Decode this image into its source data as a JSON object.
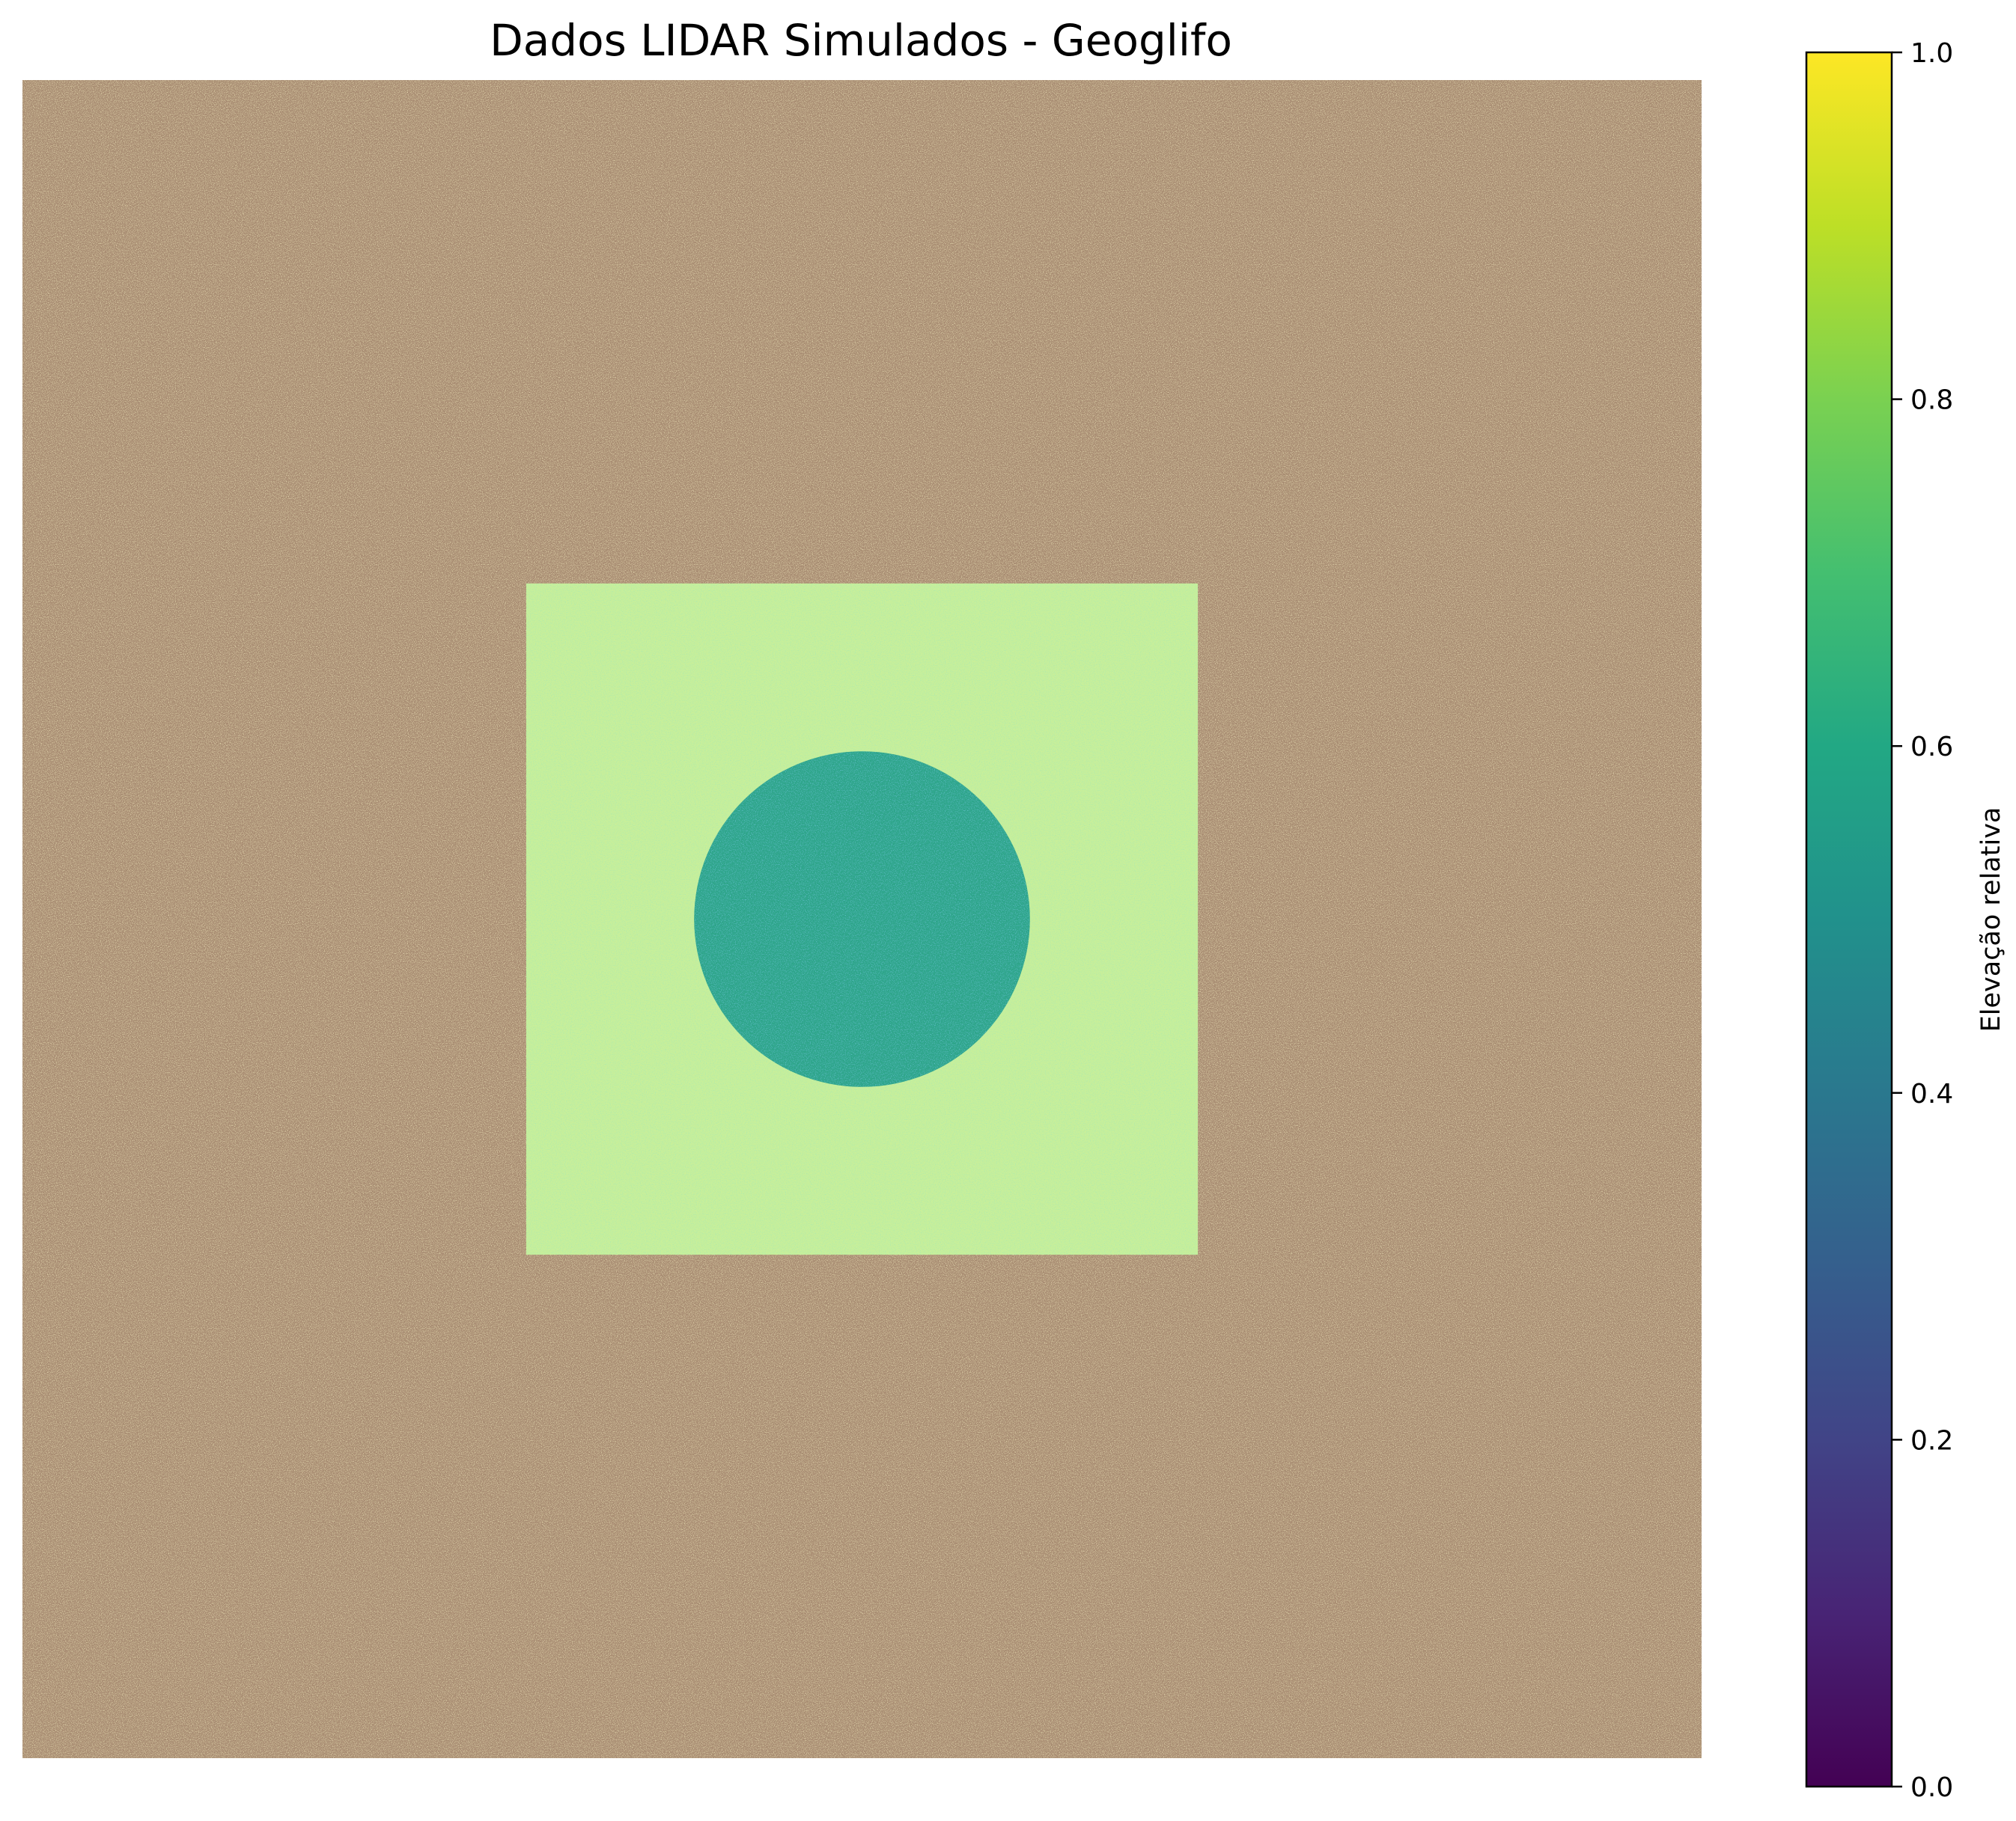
{
  "chart_data": {
    "type": "heatmap",
    "title": "Dados LIDAR Simulados - Geoglifo",
    "axes_visible": false,
    "grid": false,
    "image": {
      "description_shapes": [
        {
          "shape": "background",
          "mean_elevation": 0.88,
          "rendered_tint": "#a88c72"
        },
        {
          "shape": "square",
          "center": [
            0.5,
            0.5
          ],
          "half_width": 0.2,
          "mean_elevation": 0.85
        },
        {
          "shape": "disc",
          "center": [
            0.5,
            0.5
          ],
          "radius": 0.1,
          "mean_elevation": 0.6
        }
      ]
    },
    "colorbar": {
      "label": "Elevação relativa",
      "colormap": "viridis",
      "range": [
        0.0,
        1.0
      ],
      "ticks": [
        0.0,
        0.2,
        0.4,
        0.6,
        0.8,
        1.0
      ],
      "tick_labels": [
        "0.0",
        "0.2",
        "0.4",
        "0.6",
        "0.8",
        "1.0"
      ]
    },
    "colors": {
      "terrain": "#a88c72",
      "terrain_light": "#d8c27e",
      "square": "#c8ef9a",
      "disc": "#2fa58a"
    }
  }
}
